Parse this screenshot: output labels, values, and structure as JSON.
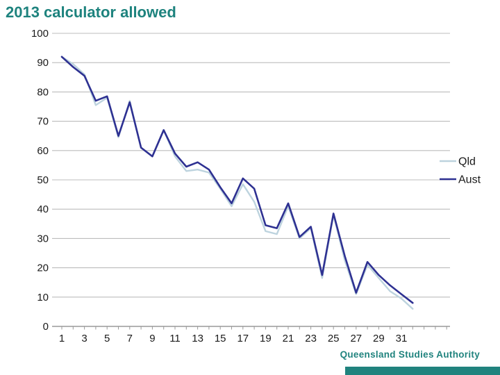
{
  "title": "2013 calculator allowed",
  "footer": {
    "org": "Queensland Studies Authority"
  },
  "colors": {
    "title": "#1e837e",
    "footer_text": "#20837e",
    "footer_bar": "#20837e",
    "grid": "#bcbcbc",
    "axis": "#999999",
    "tick": "#999999",
    "label_text": "#1a1a1a",
    "qld": "#bdd3de",
    "aust": "#2e3192"
  },
  "chart_data": {
    "type": "line",
    "title": "2013 calculator allowed",
    "x": [
      1,
      2,
      3,
      4,
      5,
      6,
      7,
      8,
      9,
      10,
      11,
      12,
      13,
      14,
      15,
      16,
      17,
      18,
      19,
      20,
      21,
      22,
      23,
      24,
      25,
      26,
      27,
      28,
      29,
      30,
      31,
      32
    ],
    "xtick_labels": [
      "1",
      "3",
      "5",
      "7",
      "9",
      "11",
      "13",
      "15",
      "17",
      "19",
      "21",
      "23",
      "25",
      "27",
      "29",
      "31"
    ],
    "xlabel": "",
    "ylabel": "",
    "ylim": [
      0,
      100
    ],
    "ytick_step": 10,
    "grid": "horizontal",
    "legend_position": "right",
    "series": [
      {
        "name": "Qld",
        "color": "#bdd3de",
        "values": [
          92,
          89.5,
          86,
          75.5,
          78,
          64.5,
          77,
          61,
          58,
          67,
          58,
          53,
          53.5,
          52.5,
          47,
          41,
          48.5,
          42.5,
          32.5,
          31.5,
          41,
          30,
          33.5,
          16.5,
          38,
          22.5,
          11,
          21,
          16.5,
          12,
          9.5,
          6
        ]
      },
      {
        "name": "Aust",
        "color": "#2e3192",
        "values": [
          92,
          88.5,
          85.5,
          77,
          78.5,
          65,
          76.5,
          61,
          58,
          67,
          59,
          54.5,
          56,
          53.5,
          47.5,
          42,
          50.5,
          47,
          34.5,
          33.5,
          42,
          30.5,
          34,
          17.5,
          38.5,
          24,
          11.5,
          22,
          17.5,
          14,
          11,
          8
        ]
      }
    ]
  }
}
